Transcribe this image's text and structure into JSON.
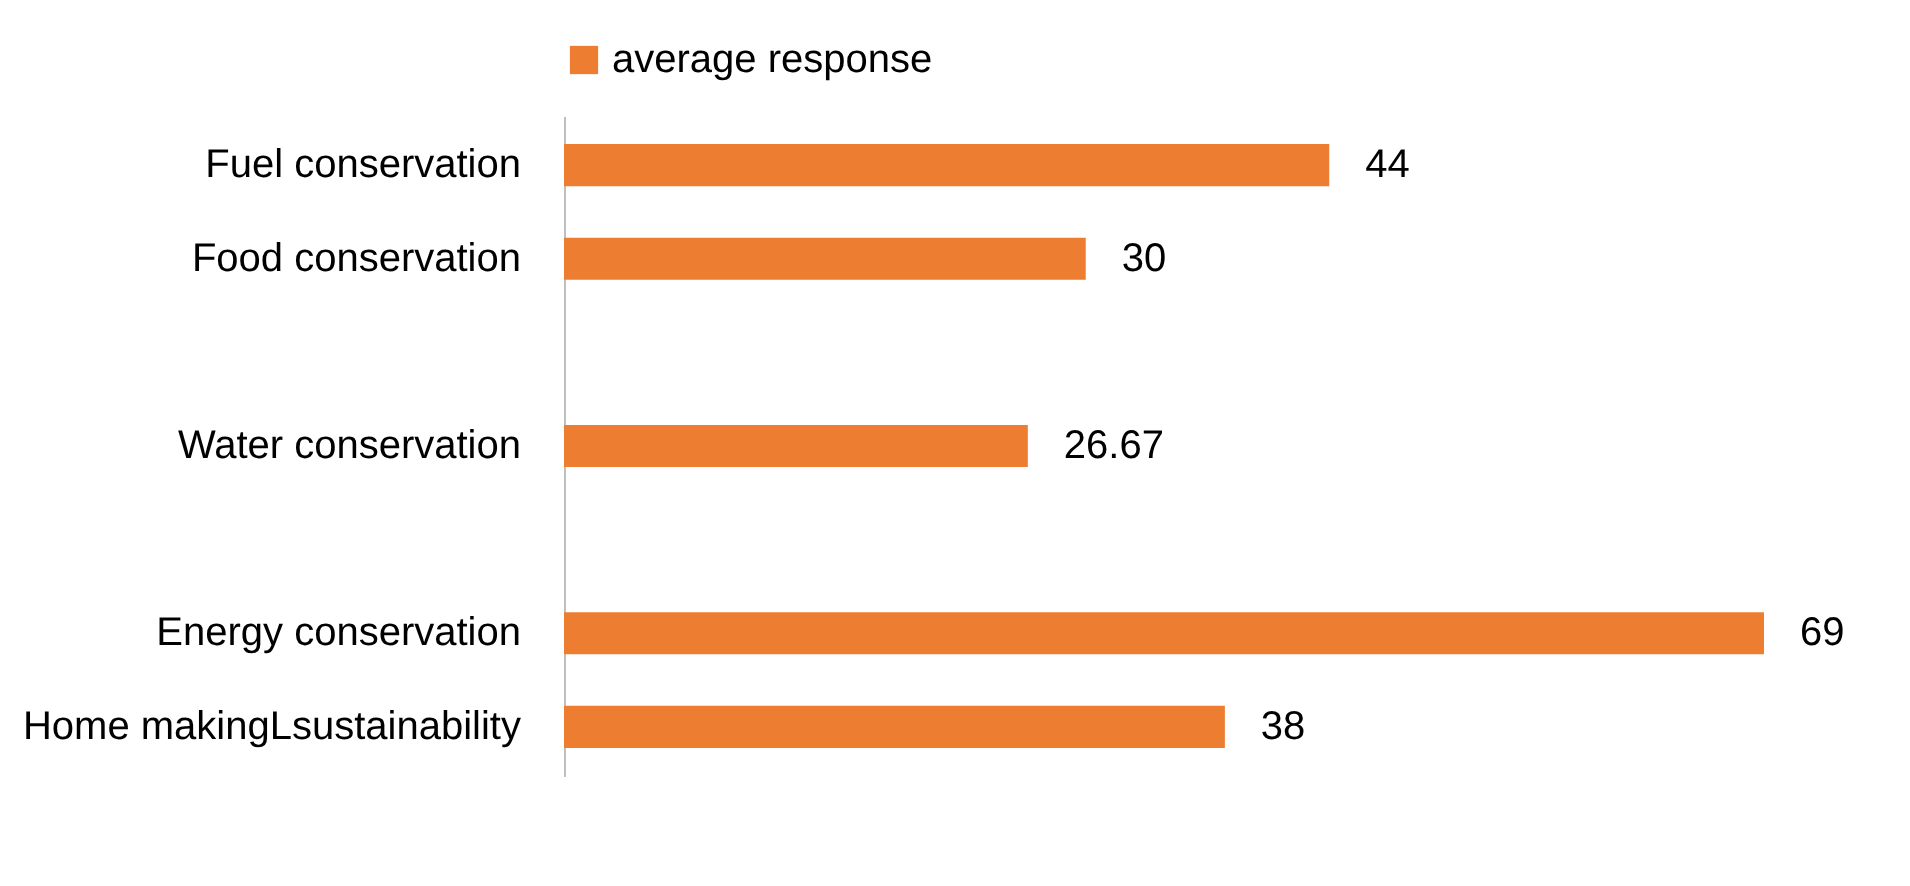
{
  "chart_data": {
    "type": "bar",
    "orientation": "horizontal",
    "categories": [
      "Fuel conservation",
      "Food conservation",
      null,
      "Water conservation",
      null,
      "Energy conservation",
      "Home makingLsustainability"
    ],
    "series": [
      {
        "name": "average response",
        "color": "#ed7d31",
        "values": [
          44,
          30,
          null,
          26.67,
          null,
          69,
          38
        ]
      }
    ],
    "data_labels": true,
    "legend": "top",
    "grid": false
  }
}
